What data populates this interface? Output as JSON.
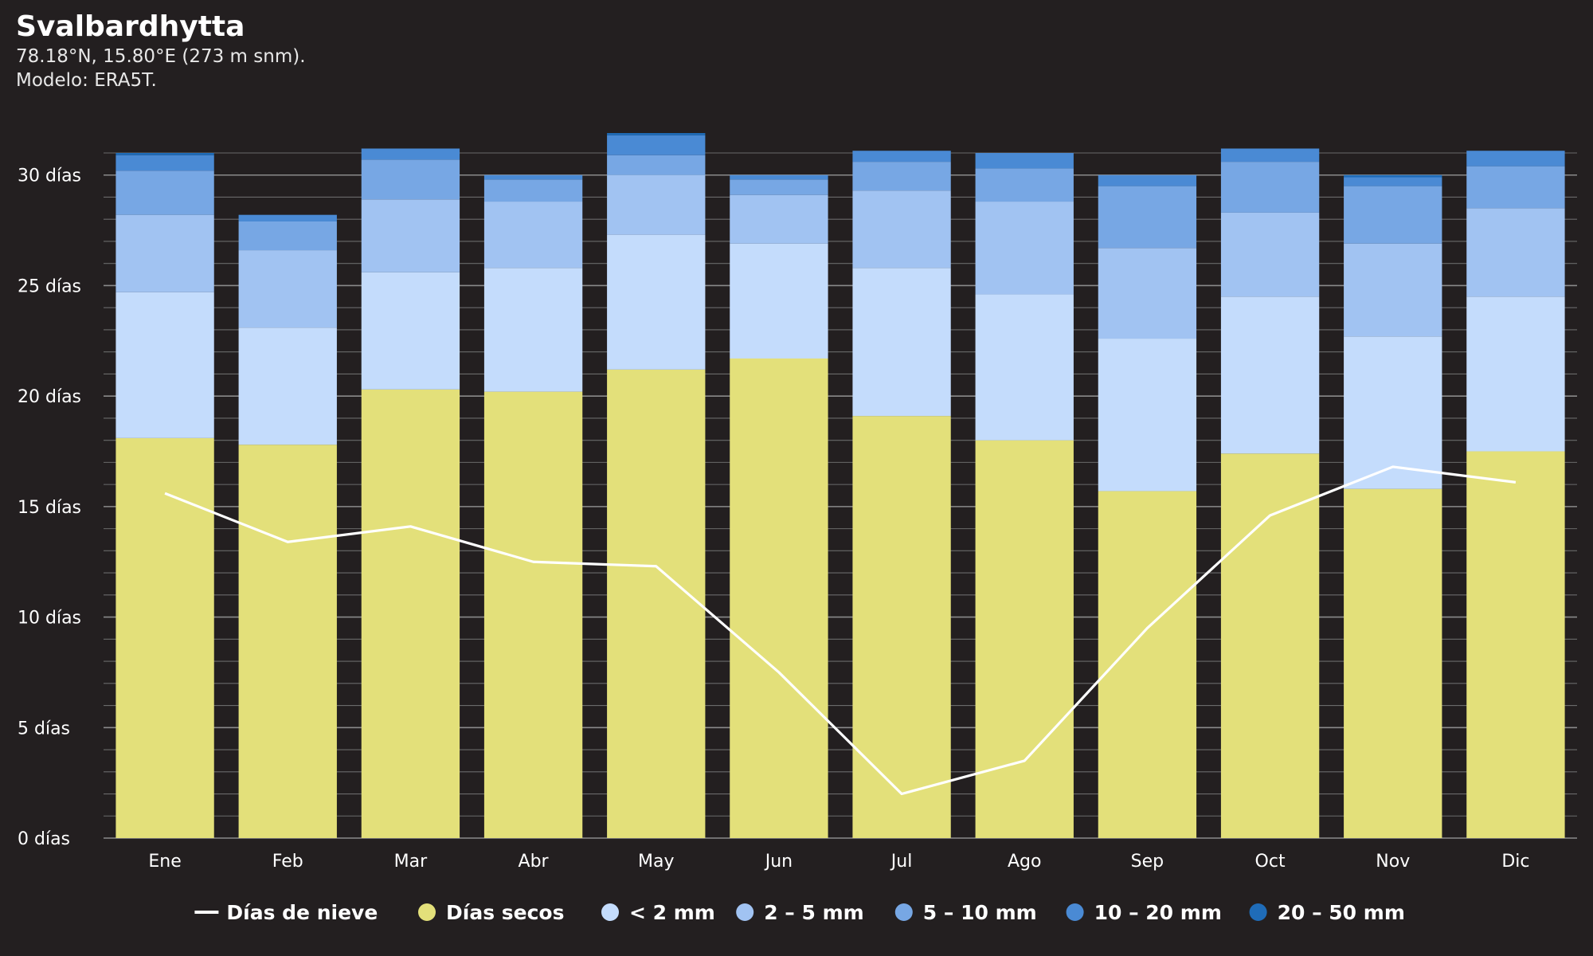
{
  "header": {
    "title": "Svalbardhytta",
    "coords": "78.18°N, 15.80°E (273 m snm).",
    "model": "Modelo: ERA5T."
  },
  "chart_data": {
    "type": "bar",
    "stacked": true,
    "categories": [
      "Ene",
      "Feb",
      "Mar",
      "Abr",
      "May",
      "Jun",
      "Jul",
      "Ago",
      "Sep",
      "Oct",
      "Nov",
      "Dic"
    ],
    "y_ticks": [
      "0 días",
      "5 días",
      "10 días",
      "15 días",
      "20 días",
      "25 días",
      "30 días"
    ],
    "ylim": [
      0,
      31
    ],
    "grid": true,
    "legend_position": "bottom",
    "series": [
      {
        "name": "Días secos",
        "color": "#e3e07a",
        "values": [
          18.1,
          17.8,
          20.3,
          20.2,
          21.2,
          21.7,
          19.1,
          18.0,
          15.7,
          17.4,
          15.8,
          17.5
        ]
      },
      {
        "name": "< 2 mm",
        "color": "#c4dcfc",
        "values": [
          6.6,
          5.3,
          5.3,
          5.6,
          6.1,
          5.2,
          6.7,
          6.6,
          6.9,
          7.1,
          6.9,
          7.0
        ]
      },
      {
        "name": "2 – 5 mm",
        "color": "#a1c3f2",
        "values": [
          3.5,
          3.5,
          3.3,
          3.0,
          2.7,
          2.2,
          3.5,
          4.2,
          4.1,
          3.8,
          4.2,
          4.0
        ]
      },
      {
        "name": "5 – 10 mm",
        "color": "#77a7e4",
        "values": [
          2.0,
          1.3,
          1.8,
          1.0,
          0.9,
          0.7,
          1.3,
          1.5,
          2.8,
          2.3,
          2.6,
          1.9
        ]
      },
      {
        "name": "10 – 20 mm",
        "color": "#4a8ad4",
        "values": [
          0.7,
          0.3,
          0.5,
          0.2,
          0.9,
          0.2,
          0.5,
          0.7,
          0.5,
          0.6,
          0.4,
          0.7
        ]
      },
      {
        "name": "20 – 50 mm",
        "color": "#1f6cb8",
        "values": [
          0.1,
          0.0,
          0.0,
          0.0,
          0.1,
          0.0,
          0.0,
          0.0,
          0.0,
          0.0,
          0.1,
          0.0
        ]
      }
    ],
    "line_series": {
      "name": "Días de nieve",
      "color": "#ffffff",
      "values": [
        15.6,
        13.4,
        14.1,
        12.5,
        12.3,
        7.5,
        2.0,
        3.5,
        9.5,
        14.6,
        16.8,
        16.1
      ]
    }
  }
}
